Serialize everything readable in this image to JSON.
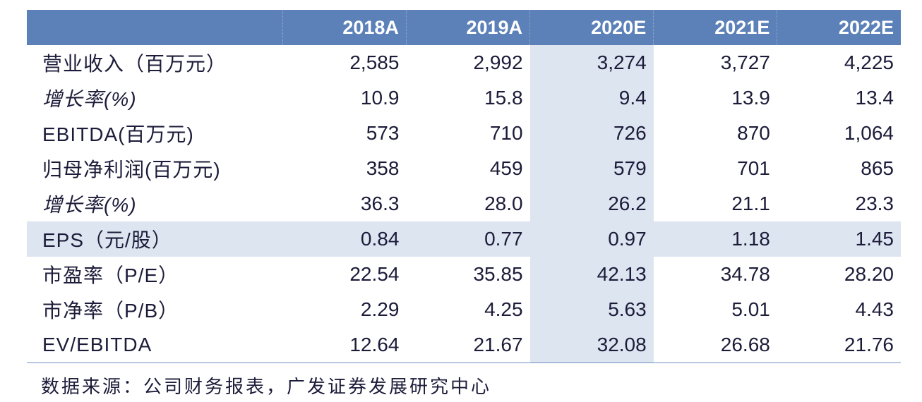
{
  "header": {
    "label": "",
    "years": [
      "2018A",
      "2019A",
      "2020E",
      "2021E",
      "2022E"
    ]
  },
  "rows": [
    {
      "label": "营业收入（百万元）",
      "italic": false,
      "values": [
        "2,585",
        "2,992",
        "3,274",
        "3,727",
        "4,225"
      ]
    },
    {
      "label": "增长率(%)",
      "italic": true,
      "values": [
        "10.9",
        "15.8",
        "9.4",
        "13.9",
        "13.4"
      ]
    },
    {
      "label": "EBITDA(百万元)",
      "italic": false,
      "values": [
        "573",
        "710",
        "726",
        "870",
        "1,064"
      ]
    },
    {
      "label": "归母净利润(百万元)",
      "italic": false,
      "values": [
        "358",
        "459",
        "579",
        "701",
        "865"
      ]
    },
    {
      "label": "增长率(%)",
      "italic": true,
      "values": [
        "36.3",
        "28.0",
        "26.2",
        "21.1",
        "23.3"
      ]
    },
    {
      "label": "EPS（元/股）",
      "italic": false,
      "values": [
        "0.84",
        "0.77",
        "0.97",
        "1.18",
        "1.45"
      ]
    },
    {
      "label": "市盈率（P/E）",
      "italic": false,
      "values": [
        "22.54",
        "35.85",
        "42.13",
        "34.78",
        "28.20"
      ]
    },
    {
      "label": "市净率（P/B）",
      "italic": false,
      "values": [
        "2.29",
        "4.25",
        "5.63",
        "5.01",
        "4.43"
      ]
    },
    {
      "label": "EV/EBITDA",
      "italic": false,
      "values": [
        "12.64",
        "21.67",
        "32.08",
        "26.68",
        "21.76"
      ]
    }
  ],
  "source": "数据来源：公司财务报表，广发证券发展研究中心",
  "colors": {
    "header_bg": "#5b81b8",
    "highlight_bg": "#dde5f0",
    "text": "#1c1c3a"
  }
}
